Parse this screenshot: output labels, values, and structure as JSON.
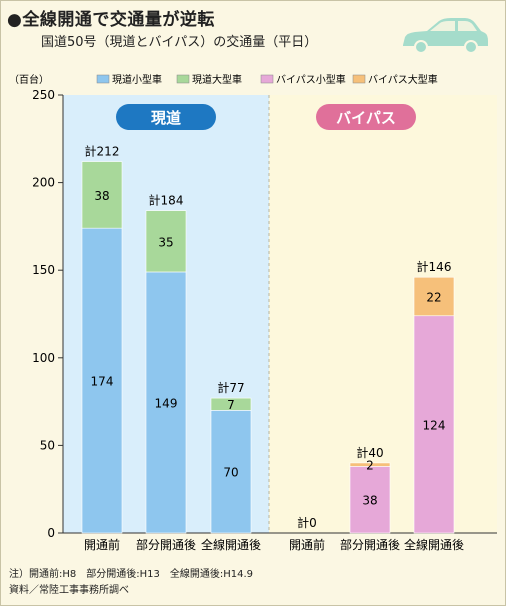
{
  "title": "●全線開通で交通量が逆転",
  "subtitle": "国道50号（現道とバイパス）の交通量（平日）",
  "notes": [
    "注）開通前:H8　部分開通後:H13　全線開通後:H14.9",
    "資料／常陸工事事務所調べ"
  ],
  "colors": {
    "background": "#fbf7e3",
    "panel_left": "#d9eefb",
    "panel_right": "#fdf8dc",
    "series_genado_small": "#8ec6ee",
    "series_genado_large": "#a8d89a",
    "series_bypass_small": "#e6a8d8",
    "series_bypass_large": "#f6c07a",
    "badge_genado": "#1e78c2",
    "badge_bypass": "#e0709a",
    "car_icon": "#a5dccb"
  },
  "icons": {
    "car": "car-icon"
  },
  "chart_data": {
    "type": "bar",
    "stacked": true,
    "ylabel": "（百台）",
    "ylim": [
      0,
      250
    ],
    "yticks": [
      0,
      50,
      100,
      150,
      200,
      250
    ],
    "legend": {
      "placement": "top",
      "entries": [
        "現道小型車",
        "現道大型車",
        "バイパス小型車",
        "バイパス大型車"
      ]
    },
    "groups": [
      {
        "label": "現道",
        "categories": [
          "開通前",
          "部分開通後",
          "全線開通後"
        ],
        "series": [
          {
            "name": "現道小型車",
            "values": [
              174,
              149,
              70
            ]
          },
          {
            "name": "現道大型車",
            "values": [
              38,
              35,
              7
            ]
          }
        ],
        "totals": [
          "計212",
          "計184",
          "計77"
        ],
        "segment_labels": [
          [
            "174",
            "38"
          ],
          [
            "149",
            "35"
          ],
          [
            "70",
            "7"
          ]
        ]
      },
      {
        "label": "バイパス",
        "categories": [
          "開通前",
          "部分開通後",
          "全線開通後"
        ],
        "series": [
          {
            "name": "バイパス小型車",
            "values": [
              0,
              38,
              124
            ]
          },
          {
            "name": "バイパス大型車",
            "values": [
              0,
              2,
              22
            ]
          }
        ],
        "totals": [
          "計0",
          "計40",
          "計146"
        ],
        "segment_labels": [
          [
            "",
            ""
          ],
          [
            "38",
            "2"
          ],
          [
            "124",
            "22"
          ]
        ]
      }
    ]
  }
}
